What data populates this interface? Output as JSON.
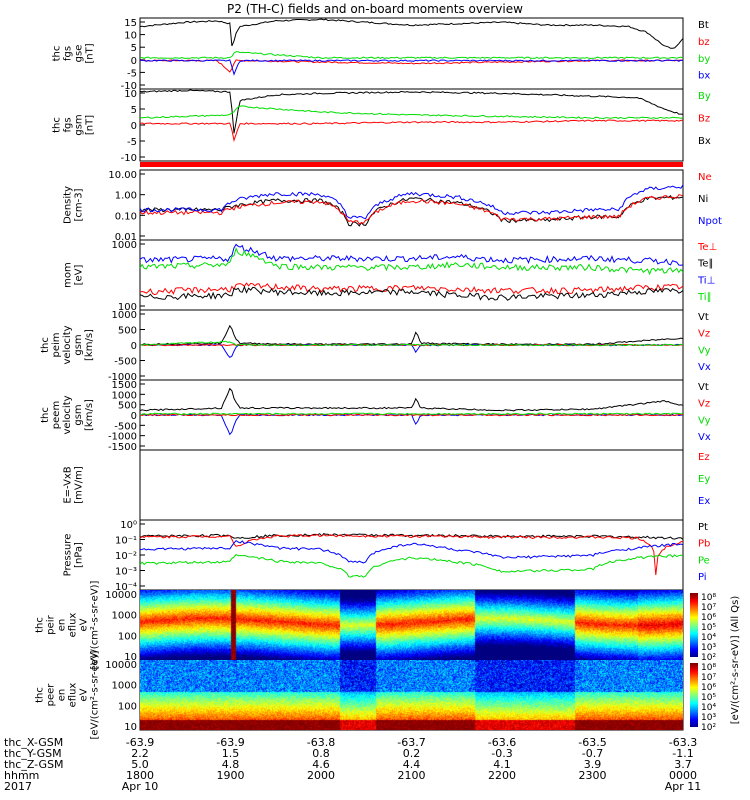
{
  "title": "P2 (TH-C) fields and on-board moments overview",
  "footer": {
    "row_labels": [
      "thc_X-GSM",
      "thc_Y-GSM",
      "thc_Z-GSM",
      "hhmm",
      "2017"
    ],
    "columns": [
      {
        "x": "-63.9",
        "y": "2.2",
        "z": "5.0",
        "hhmm": "1800",
        "date": "Apr 10"
      },
      {
        "x": "-63.9",
        "y": "1.5",
        "z": "4.8",
        "hhmm": "1900",
        "date": ""
      },
      {
        "x": "-63.8",
        "y": "0.8",
        "z": "4.6",
        "hhmm": "2000",
        "date": ""
      },
      {
        "x": "-63.7",
        "y": "0.2",
        "z": "4.4",
        "hhmm": "2100",
        "date": ""
      },
      {
        "x": "-63.6",
        "y": "-0.3",
        "z": "4.1",
        "hhmm": "2200",
        "date": ""
      },
      {
        "x": "-63.5",
        "y": "-0.7",
        "z": "3.9",
        "hhmm": "2300",
        "date": ""
      },
      {
        "x": "-63.3",
        "y": "-1.1",
        "z": "3.7",
        "hhmm": "0000",
        "date": "Apr 11"
      }
    ]
  },
  "colors": {
    "black": "#000000",
    "red": "#ff0000",
    "green": "#00dd00",
    "blue": "#0000ff"
  },
  "chart_data": [
    {
      "type": "line",
      "panel": "fgs_gse",
      "ylabel": [
        "thc",
        "fgs",
        "gse",
        "[nT]"
      ],
      "ylim": [
        -10,
        15
      ],
      "yticks": [
        "15",
        "10",
        "5",
        "0",
        "-5",
        "-10"
      ],
      "legend": [
        {
          "name": "Bt",
          "color": "#000000"
        },
        {
          "name": "bz",
          "color": "#ff0000"
        },
        {
          "name": "by",
          "color": "#00dd00"
        },
        {
          "name": "bx",
          "color": "#0000ff"
        }
      ],
      "series": [
        {
          "name": "Bt",
          "color": "#000000",
          "x": [
            0,
            0.5,
            0.85,
            1.0,
            1.02,
            1.05,
            1.1,
            1.3,
            1.5,
            2.0,
            2.5,
            3.0,
            3.5,
            4.0,
            4.5,
            5.0,
            5.4,
            5.6,
            5.8,
            5.9,
            6.0
          ],
          "y": [
            12,
            13.5,
            14,
            13,
            3,
            9,
            12,
            13,
            14,
            14.5,
            13.5,
            12.5,
            13,
            13.5,
            12.5,
            12.5,
            12,
            10,
            5,
            4,
            8
          ]
        },
        {
          "name": "bz",
          "color": "#ff0000",
          "x": [
            0,
            0.85,
            1.0,
            1.05,
            1.2,
            2.0,
            3.0,
            4.0,
            5.0,
            5.6,
            6.0
          ],
          "y": [
            0,
            0,
            -4,
            0,
            0,
            -0.5,
            -1,
            -0.5,
            0,
            0,
            0
          ]
        },
        {
          "name": "by",
          "color": "#00dd00",
          "x": [
            0,
            1.0,
            1.05,
            2.0,
            3.0,
            4.0,
            5.0,
            6.0
          ],
          "y": [
            1,
            1,
            3,
            1,
            1,
            1,
            1,
            1
          ]
        },
        {
          "name": "bx",
          "color": "#0000ff",
          "x": [
            0,
            1.0,
            1.04,
            1.1,
            2.0,
            6.0
          ],
          "y": [
            0,
            0,
            -5,
            0,
            0,
            0
          ]
        }
      ]
    },
    {
      "type": "line",
      "panel": "fgs_gsm",
      "ylabel": [
        "thc",
        "fgs",
        "gsm",
        "[nT]"
      ],
      "ylim": [
        -15,
        10
      ],
      "yticks": [
        "10",
        "5",
        "0",
        "-5",
        "-10"
      ],
      "legend": [
        {
          "name": "By",
          "color": "#00dd00"
        },
        {
          "name": "Bz",
          "color": "#ff0000"
        },
        {
          "name": "Bx",
          "color": "#000000"
        }
      ],
      "series": [
        {
          "name": "Bx",
          "color": "#000000",
          "x": [
            0,
            0.5,
            1.0,
            1.04,
            1.1,
            1.5,
            2.0,
            3.0,
            4.0,
            5.0,
            5.5,
            5.8,
            6.0
          ],
          "y": [
            9,
            9.5,
            9,
            -6,
            6,
            8,
            8.5,
            9,
            8.5,
            7.5,
            7,
            3,
            1
          ]
        },
        {
          "name": "Bz",
          "color": "#ff0000",
          "x": [
            0,
            1.0,
            1.04,
            1.1,
            2.0,
            3.0,
            4.0,
            5.0,
            6.0
          ],
          "y": [
            -2,
            -2,
            -8,
            -2,
            -2,
            -1.5,
            -1.5,
            -1,
            -1
          ]
        },
        {
          "name": "By",
          "color": "#00dd00",
          "x": [
            0,
            1.0,
            1.1,
            2.0,
            3.0,
            4.0,
            5.0,
            6.0
          ],
          "y": [
            0,
            1,
            4,
            2,
            1,
            0.5,
            0,
            0
          ]
        }
      ]
    },
    {
      "type": "line",
      "panel": "density",
      "ylabel": [
        "Density",
        "[cm-3]"
      ],
      "yscale": "log",
      "ylim": [
        0.01,
        10
      ],
      "yticks": [
        "10.00",
        "1.00",
        "0.10",
        "0.01"
      ],
      "legend": [
        {
          "name": "Ne",
          "color": "#ff0000"
        },
        {
          "name": "Ni",
          "color": "#000000"
        },
        {
          "name": "Npot",
          "color": "#0000ff"
        }
      ],
      "series": [
        {
          "name": "Ni",
          "color": "#000000",
          "x": [
            0,
            0.9,
            1.05,
            1.5,
            2.0,
            2.3,
            2.5,
            3.0,
            3.5,
            4.0,
            4.5,
            5.0,
            5.3,
            5.6,
            6.0
          ],
          "y": [
            0.2,
            0.2,
            0.3,
            0.5,
            0.5,
            0.05,
            0.05,
            0.6,
            0.4,
            0.07,
            0.07,
            0.1,
            0.1,
            0.6,
            0.7
          ]
        },
        {
          "name": "Ne",
          "color": "#ff0000",
          "x": [
            0,
            0.9,
            1.05,
            1.5,
            2.0,
            2.3,
            2.5,
            3.0,
            3.5,
            4.0,
            4.5,
            5.0,
            5.3,
            5.6,
            6.0
          ],
          "y": [
            0.15,
            0.15,
            0.25,
            0.4,
            0.45,
            0.06,
            0.06,
            0.5,
            0.35,
            0.08,
            0.08,
            0.1,
            0.1,
            0.6,
            0.8
          ]
        },
        {
          "name": "Npot",
          "color": "#0000ff",
          "x": [
            0,
            0.9,
            1.05,
            1.5,
            2.0,
            2.3,
            2.5,
            3.0,
            3.5,
            4.0,
            4.5,
            5.0,
            5.3,
            5.6,
            6.0
          ],
          "y": [
            0.2,
            0.2,
            0.5,
            1.0,
            0.9,
            0.09,
            0.09,
            1.0,
            0.7,
            0.15,
            0.15,
            0.2,
            0.2,
            1.5,
            2.0
          ]
        }
      ]
    },
    {
      "type": "line",
      "panel": "temperature",
      "ylabel": [
        "mom",
        "[eV]"
      ],
      "yscale": "log",
      "ylim": [
        30,
        3000
      ],
      "yticks": [
        "1000",
        "100"
      ],
      "legend": [
        {
          "name": "Te⊥",
          "color": "#ff0000"
        },
        {
          "name": "Te∥",
          "color": "#000000"
        },
        {
          "name": "Ti⊥",
          "color": "#0000ff"
        },
        {
          "name": "Ti∥",
          "color": "#00dd00"
        }
      ],
      "series": [
        {
          "name": "Ti⊥",
          "color": "#0000ff",
          "x": [
            0,
            1.0,
            1.05,
            1.5,
            2.0,
            3.0,
            3.5,
            4.0,
            5.0,
            5.5,
            6.0
          ],
          "y": [
            800,
            900,
            2000,
            900,
            900,
            900,
            1000,
            800,
            900,
            800,
            700
          ]
        },
        {
          "name": "Ti∥",
          "color": "#00dd00",
          "x": [
            0,
            1.0,
            1.05,
            1.5,
            2.0,
            3.0,
            3.5,
            4.0,
            5.0,
            5.5,
            6.0
          ],
          "y": [
            500,
            600,
            1500,
            550,
            500,
            500,
            600,
            500,
            500,
            400,
            400
          ]
        },
        {
          "name": "Te⊥",
          "color": "#ff0000",
          "x": [
            0,
            1.0,
            1.05,
            1.5,
            2.0,
            3.0,
            3.5,
            4.0,
            5.0,
            5.5,
            6.0
          ],
          "y": [
            100,
            120,
            150,
            140,
            120,
            130,
            120,
            110,
            110,
            130,
            140
          ]
        },
        {
          "name": "Te∥",
          "color": "#000000",
          "x": [
            0,
            1.0,
            1.05,
            1.5,
            2.0,
            3.0,
            3.5,
            4.0,
            5.0,
            5.5,
            6.0
          ],
          "y": [
            70,
            80,
            120,
            100,
            90,
            100,
            80,
            70,
            80,
            100,
            110
          ]
        }
      ]
    },
    {
      "type": "line",
      "panel": "peim_velocity",
      "ylabel": [
        "thc",
        "peim",
        "velocity",
        "gsm",
        "[km/s]"
      ],
      "ylim": [
        -1000,
        1000
      ],
      "yticks": [
        "1000",
        "500",
        "0",
        "-500",
        "-1000"
      ],
      "legend": [
        {
          "name": "Vt",
          "color": "#000000"
        },
        {
          "name": "Vz",
          "color": "#ff0000"
        },
        {
          "name": "Vy",
          "color": "#00dd00"
        },
        {
          "name": "Vx",
          "color": "#0000ff"
        }
      ],
      "series": [
        {
          "name": "Vt",
          "color": "#000000",
          "x": [
            0,
            0.9,
            1.0,
            1.05,
            1.1,
            1.5,
            2.0,
            3.0,
            3.05,
            3.1,
            4.0,
            5.0,
            6.0
          ],
          "y": [
            20,
            50,
            600,
            200,
            50,
            30,
            20,
            30,
            400,
            50,
            20,
            20,
            200
          ]
        },
        {
          "name": "Vx",
          "color": "#0000ff",
          "x": [
            0,
            0.9,
            1.0,
            1.05,
            1.1,
            2.0,
            3.0,
            3.05,
            3.1,
            4.0,
            6.0
          ],
          "y": [
            0,
            0,
            -400,
            -100,
            0,
            0,
            0,
            -200,
            0,
            0,
            0
          ]
        },
        {
          "name": "Vz",
          "color": "#ff0000",
          "x": [
            0,
            6.0
          ],
          "y": [
            0,
            0
          ]
        },
        {
          "name": "Vy",
          "color": "#00dd00",
          "x": [
            0,
            1.0,
            1.05,
            6.0
          ],
          "y": [
            0,
            100,
            0,
            0
          ]
        }
      ]
    },
    {
      "type": "line",
      "panel": "peem_velocity",
      "ylabel": [
        "thc",
        "peem",
        "velocity",
        "gsm",
        "[km/s]"
      ],
      "ylim": [
        -1500,
        1500
      ],
      "yticks": [
        "1500",
        "1000",
        "500",
        "0",
        "-500",
        "-1000",
        "-1500"
      ],
      "legend": [
        {
          "name": "Vt",
          "color": "#000000"
        },
        {
          "name": "Vz",
          "color": "#ff0000"
        },
        {
          "name": "Vy",
          "color": "#00dd00"
        },
        {
          "name": "Vx",
          "color": "#0000ff"
        }
      ],
      "series": [
        {
          "name": "Vt",
          "color": "#000000",
          "x": [
            0,
            0.9,
            1.0,
            1.05,
            1.1,
            1.5,
            2.0,
            3.0,
            3.05,
            3.1,
            4.0,
            5.0,
            5.8,
            6.0
          ],
          "y": [
            200,
            300,
            1200,
            600,
            300,
            300,
            300,
            300,
            700,
            300,
            200,
            250,
            600,
            400
          ]
        },
        {
          "name": "Vx",
          "color": "#0000ff",
          "x": [
            0,
            0.9,
            1.0,
            1.05,
            1.1,
            2.0,
            3.0,
            3.05,
            3.1,
            4.0,
            6.0
          ],
          "y": [
            0,
            0,
            -900,
            -300,
            0,
            0,
            0,
            -400,
            0,
            0,
            0
          ]
        },
        {
          "name": "Vz",
          "color": "#ff0000",
          "x": [
            0,
            6.0
          ],
          "y": [
            0,
            0
          ]
        },
        {
          "name": "Vy",
          "color": "#00dd00",
          "x": [
            0,
            6.0
          ],
          "y": [
            50,
            50
          ]
        }
      ]
    },
    {
      "type": "line",
      "panel": "efield",
      "ylabel": [
        "E=-VxB",
        "[mV/m]"
      ],
      "ylim": [
        0,
        1
      ],
      "yticks": [],
      "legend": [
        {
          "name": "Ez",
          "color": "#ff0000"
        },
        {
          "name": "Ey",
          "color": "#00dd00"
        },
        {
          "name": "Ex",
          "color": "#0000ff"
        }
      ],
      "series": []
    },
    {
      "type": "line",
      "panel": "pressure",
      "ylabel": [
        "Pressure",
        "[nPa]"
      ],
      "yscale": "log",
      "ylim": [
        1e-05,
        1
      ],
      "yticks": [
        "10⁰",
        "10⁻¹",
        "10⁻²",
        "10⁻³",
        "10⁻⁴"
      ],
      "legend": [
        {
          "name": "Pt",
          "color": "#000000"
        },
        {
          "name": "Pb",
          "color": "#ff0000"
        },
        {
          "name": "Pe",
          "color": "#00dd00"
        },
        {
          "name": "Pi",
          "color": "#0000ff"
        }
      ],
      "series": [
        {
          "name": "Pt",
          "color": "#000000",
          "x": [
            0,
            1.0,
            1.05,
            1.5,
            2.0,
            3.0,
            4.0,
            5.0,
            5.5,
            6.0
          ],
          "y": [
            0.07,
            0.08,
            0.05,
            0.08,
            0.09,
            0.08,
            0.07,
            0.07,
            0.06,
            0.05
          ]
        },
        {
          "name": "Pb",
          "color": "#ff0000",
          "x": [
            0,
            1.0,
            1.05,
            1.5,
            2.0,
            3.0,
            4.0,
            5.0,
            5.5,
            5.7,
            6.0
          ],
          "y": [
            0.06,
            0.07,
            0.01,
            0.07,
            0.08,
            0.07,
            0.06,
            0.06,
            0.05,
            0.0001,
            0.03
          ]
        },
        {
          "name": "Pi",
          "color": "#0000ff",
          "x": [
            0,
            1.0,
            1.05,
            1.5,
            2.0,
            2.3,
            2.5,
            3.0,
            3.5,
            4.0,
            5.0,
            5.5,
            6.0
          ],
          "y": [
            0.008,
            0.01,
            0.03,
            0.01,
            0.008,
            0.001,
            0.001,
            0.02,
            0.007,
            0.002,
            0.003,
            0.01,
            0.02
          ]
        },
        {
          "name": "Pe",
          "color": "#00dd00",
          "x": [
            0,
            1.0,
            1.05,
            1.5,
            2.0,
            2.3,
            2.5,
            3.0,
            3.5,
            4.0,
            5.0,
            5.5,
            6.0
          ],
          "y": [
            0.0008,
            0.001,
            0.003,
            0.0012,
            0.0008,
            0.0001,
            0.0001,
            0.002,
            0.001,
            0.0002,
            0.0003,
            0.002,
            0.003
          ]
        }
      ]
    },
    {
      "type": "heatmap",
      "panel": "peir_spectrogram",
      "ylabel": [
        "thc",
        "peir",
        "en",
        "eflux",
        "eV",
        "[eV/(cm²-s-sr-eV)]"
      ],
      "yscale": "log",
      "ylim": [
        5,
        25000
      ],
      "yticks": [
        "10000",
        "1000",
        "100",
        "10"
      ],
      "colorbar_label": "[eV/(cm²-s-sr-eV)] (All Qs)",
      "colorbar_ticks": [
        "10⁸",
        "10⁷",
        "10⁶",
        "10⁵",
        "10⁴",
        "10³",
        "10²"
      ]
    },
    {
      "type": "heatmap",
      "panel": "peer_spectrogram",
      "ylabel": [
        "thc",
        "peer",
        "en",
        "eflux",
        "eV",
        "[eV/(cm²-s-sr-eV)]"
      ],
      "yscale": "log",
      "ylim": [
        5,
        25000
      ],
      "yticks": [
        "10000",
        "1000",
        "100",
        "10"
      ],
      "colorbar_label": "[eV/(cm²-s-sr-eV)] (All Qs)",
      "colorbar_ticks": [
        "10⁸",
        "10⁷",
        "10⁶",
        "10⁵",
        "10⁴",
        "10³",
        "10²"
      ]
    }
  ]
}
